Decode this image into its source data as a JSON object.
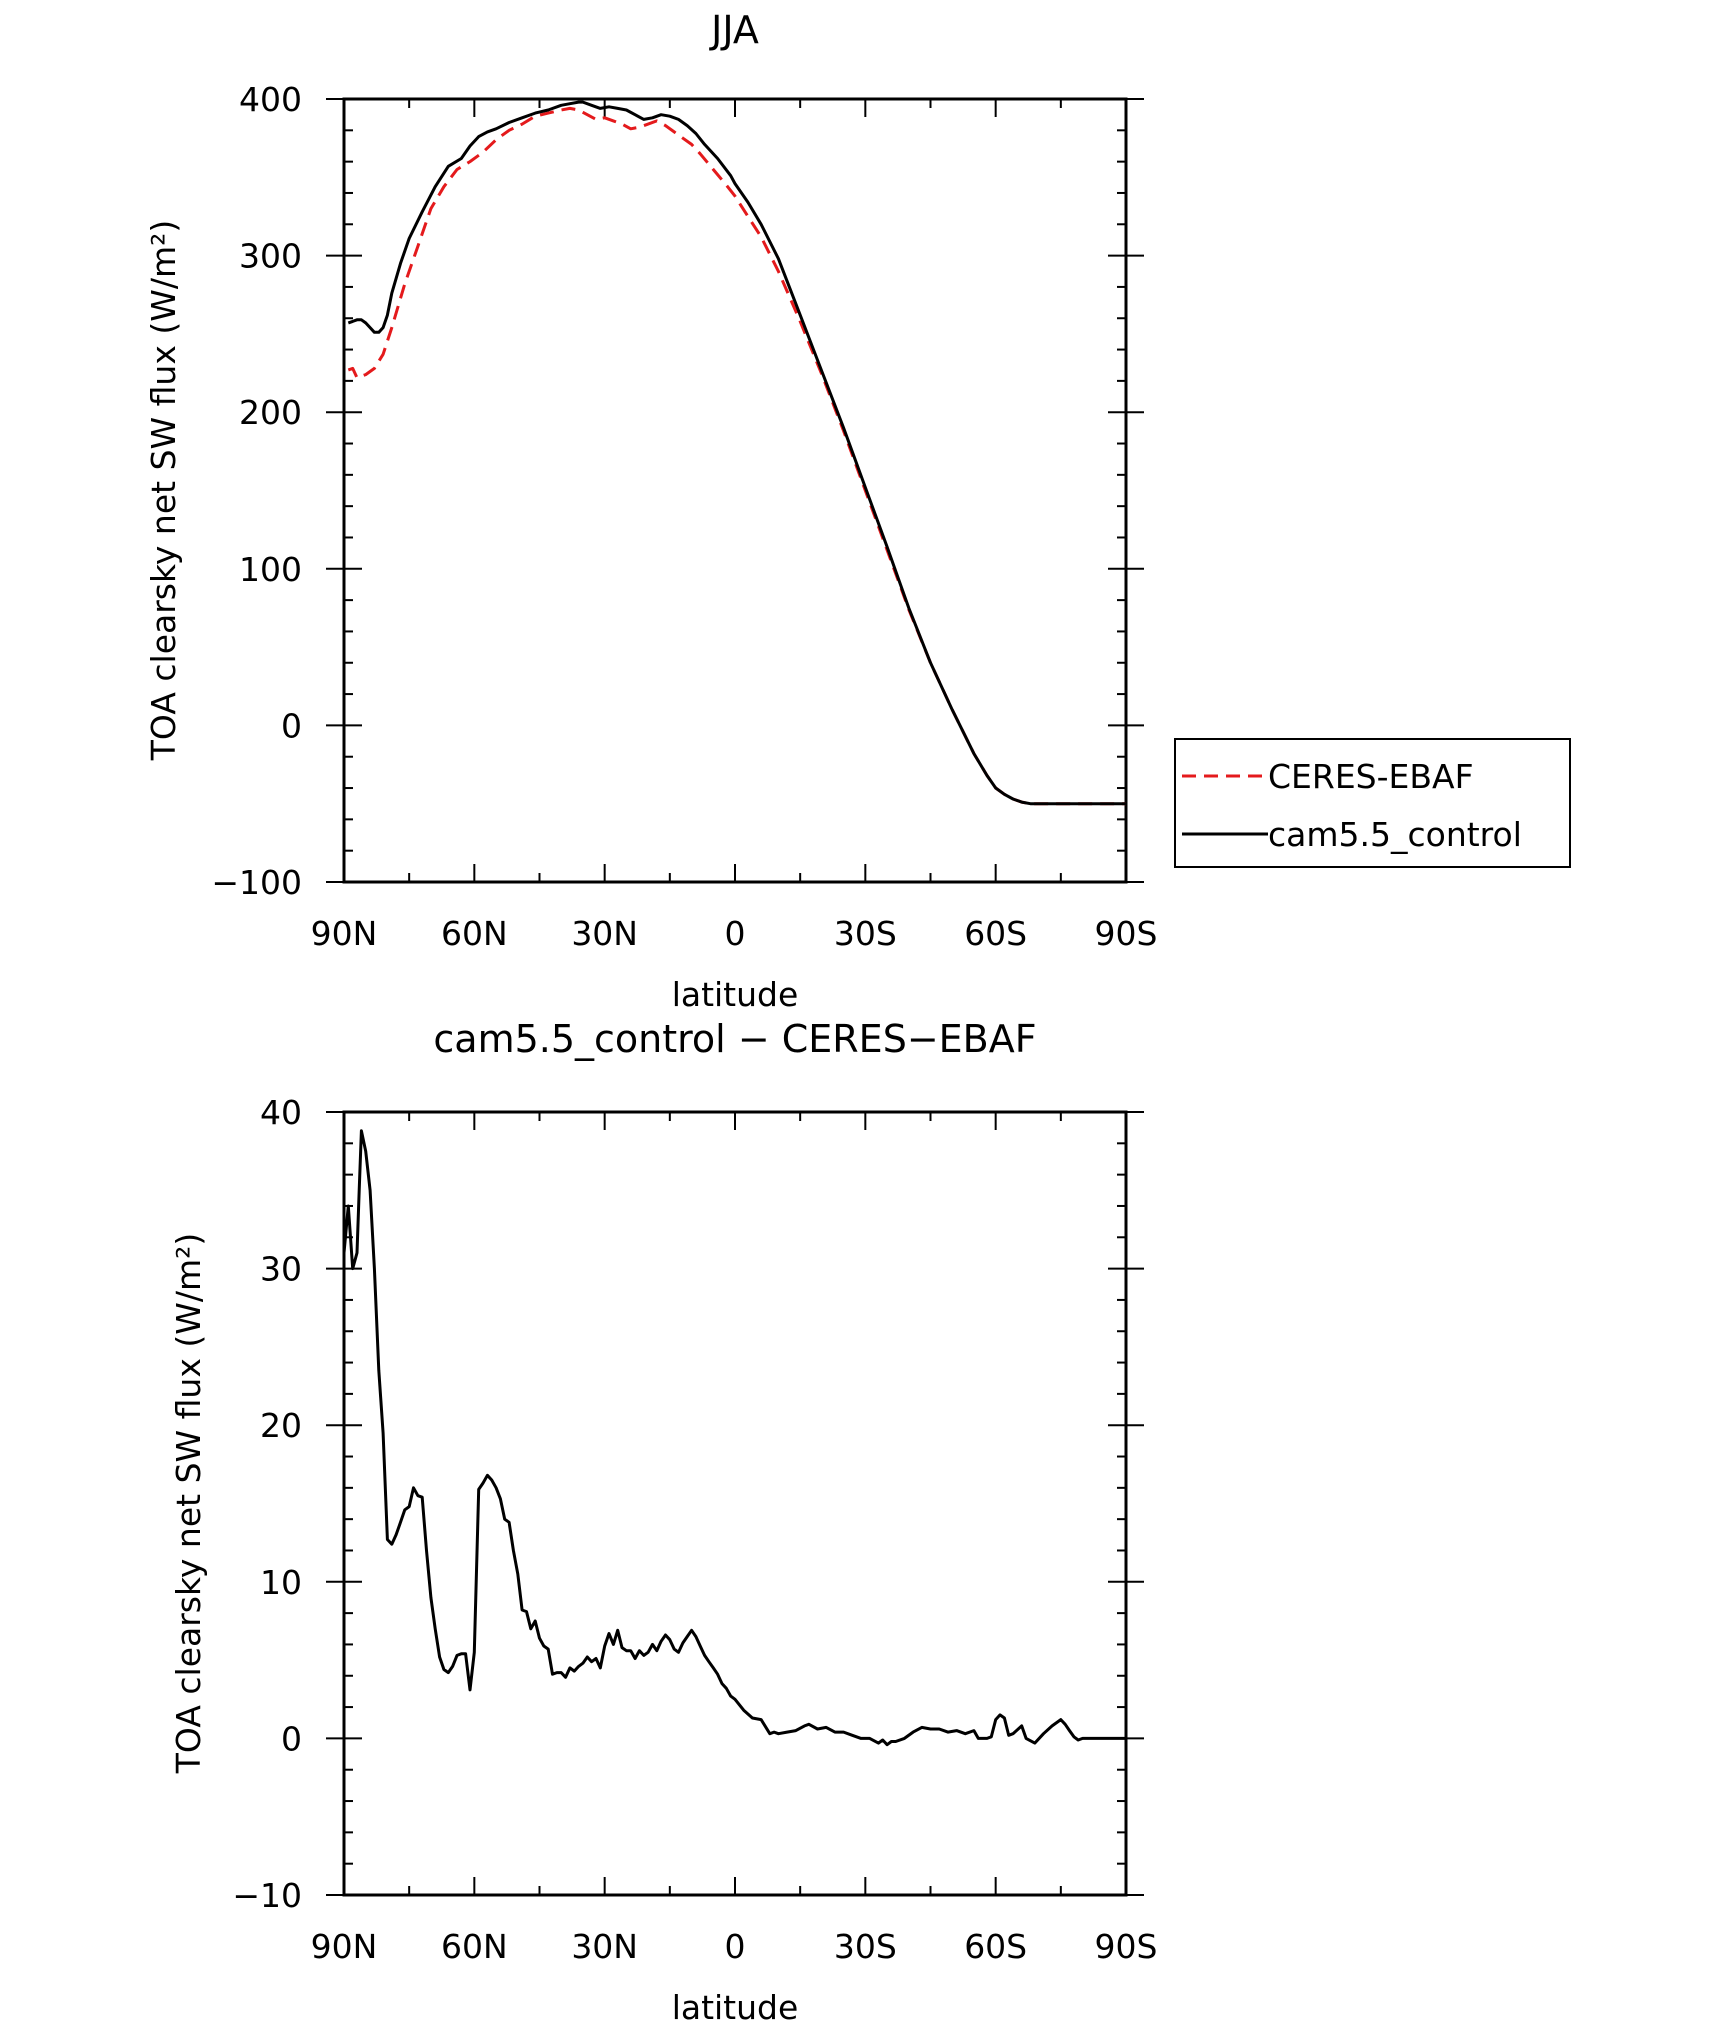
{
  "chart_data": [
    {
      "type": "line",
      "title": "JJA",
      "xlabel": "latitude",
      "ylabel": "TOA clearsky net SW flux (W/m²)",
      "xlim": [
        90,
        -90
      ],
      "ylim": [
        -100,
        400
      ],
      "xticks": [
        90,
        60,
        30,
        0,
        -30,
        -60,
        -90
      ],
      "xtick_labels": [
        "90N",
        "60N",
        "30N",
        "0",
        "30S",
        "60S",
        "90S"
      ],
      "yticks": [
        -100,
        0,
        100,
        200,
        300,
        400
      ],
      "ytick_labels": [
        "−100",
        "0",
        "100",
        "200",
        "300",
        "400"
      ],
      "legend_position": "right",
      "series": [
        {
          "name": "CERES-EBAF",
          "color": "#e41a1c",
          "dash": "dashed",
          "x": [
            89,
            88,
            87,
            86,
            85,
            83,
            81,
            79,
            76,
            73,
            70,
            67,
            64,
            61,
            58,
            55,
            52,
            49,
            46,
            43,
            40,
            38,
            36,
            34,
            32,
            30,
            28,
            26,
            24,
            22,
            20,
            18,
            16,
            14,
            12,
            10,
            8,
            5,
            2,
            0,
            -3,
            -6,
            -10,
            -15,
            -20,
            -25,
            -30,
            -35,
            -40,
            -45,
            -50,
            -55,
            -58,
            -60,
            -62,
            -64,
            -66,
            -68,
            -70,
            -73,
            -76,
            -80,
            -85,
            -90
          ],
          "y": [
            227,
            228,
            222,
            223,
            224,
            228,
            237,
            254,
            282,
            306,
            330,
            344,
            355,
            360,
            366,
            374,
            380,
            384,
            389,
            391,
            393,
            394,
            393,
            390,
            387,
            388,
            386,
            384,
            381,
            382,
            384,
            386,
            383,
            379,
            375,
            371,
            365,
            355,
            345,
            338,
            325,
            312,
            290,
            258,
            224,
            188,
            150,
            112,
            74,
            40,
            10,
            -18,
            -32,
            -40,
            -44,
            -47,
            -49,
            -50,
            -50,
            -50,
            -50,
            -50,
            -50,
            -50
          ]
        },
        {
          "name": "cam5.5_control",
          "color": "#000000",
          "dash": "solid",
          "x": [
            89,
            88,
            87,
            86,
            85,
            84,
            83,
            82,
            81,
            80,
            79,
            77,
            75,
            72,
            69,
            66,
            63,
            61,
            59,
            57,
            55,
            52,
            49,
            46,
            43,
            40,
            38,
            36,
            35,
            33,
            31,
            29,
            27,
            25,
            23,
            21,
            19,
            17,
            15,
            13,
            11,
            9,
            7,
            4,
            1,
            0,
            -3,
            -6,
            -10,
            -15,
            -20,
            -25,
            -30,
            -35,
            -40,
            -45,
            -50,
            -55,
            -58,
            -60,
            -62,
            -64,
            -66,
            -68,
            -70,
            -73,
            -76,
            -80,
            -85,
            -90
          ],
          "y": [
            257,
            258,
            259,
            259,
            257,
            254,
            251,
            251,
            254,
            262,
            276,
            295,
            311,
            328,
            344,
            357,
            362,
            370,
            376,
            379,
            381,
            385,
            388,
            391,
            393,
            396,
            397,
            398,
            398,
            396,
            394,
            395,
            394,
            393,
            390,
            387,
            388,
            390,
            389,
            387,
            383,
            378,
            371,
            362,
            351,
            346,
            334,
            320,
            298,
            262,
            226,
            190,
            152,
            114,
            75,
            40,
            10,
            -18,
            -32,
            -40,
            -44,
            -47,
            -49,
            -50,
            -50,
            -50,
            -50,
            -50,
            -50,
            -50
          ]
        }
      ]
    },
    {
      "type": "line",
      "title": "cam5.5_control − CERES−EBAF",
      "xlabel": "latitude",
      "ylabel": "TOA clearsky net SW flux (W/m²)",
      "xlim": [
        90,
        -90
      ],
      "ylim": [
        -10,
        40
      ],
      "xticks": [
        90,
        60,
        30,
        0,
        -30,
        -60,
        -90
      ],
      "xtick_labels": [
        "90N",
        "60N",
        "30N",
        "0",
        "30S",
        "60S",
        "90S"
      ],
      "yticks": [
        -10,
        0,
        10,
        20,
        30,
        40
      ],
      "ytick_labels": [
        "−10",
        "0",
        "10",
        "20",
        "30",
        "40"
      ],
      "series": [
        {
          "name": "",
          "color": "#000000",
          "dash": "solid",
          "x": [
            90,
            89,
            88,
            87,
            86.5,
            86,
            85,
            84,
            83,
            82,
            81,
            80,
            79,
            78,
            77,
            76,
            75,
            74,
            73,
            72,
            71,
            70,
            69,
            68,
            67,
            66,
            65,
            64,
            63,
            62,
            61,
            60,
            59,
            58,
            57,
            56,
            55,
            54,
            53,
            52,
            51,
            50,
            49,
            48,
            47,
            46,
            45,
            44,
            43,
            42,
            41,
            40,
            39,
            38,
            37,
            36,
            35,
            34,
            33,
            32,
            31,
            30,
            29,
            28,
            27,
            26,
            25,
            24,
            23,
            22,
            21,
            20,
            19,
            18,
            17,
            16,
            15,
            14,
            13,
            12,
            11,
            10,
            9,
            8,
            7,
            6,
            5,
            4,
            3,
            2,
            1,
            0,
            -2,
            -4,
            -6,
            -8,
            -9,
            -10,
            -12,
            -14,
            -16,
            -17,
            -19,
            -21,
            -23,
            -25,
            -27,
            -29,
            -31,
            -33,
            -34,
            -35,
            -36,
            -37,
            -39,
            -41,
            -43,
            -45,
            -47,
            -49,
            -51,
            -53,
            -55,
            -56,
            -58,
            -59,
            -60,
            -61,
            -62,
            -63,
            -64,
            -66,
            -67,
            -69,
            -71,
            -73,
            -75,
            -76,
            -77,
            -78,
            -79,
            -80,
            -82,
            -85,
            -90
          ],
          "y": [
            31,
            34,
            30,
            31,
            35,
            38.8,
            37.5,
            35,
            30,
            23.5,
            19.5,
            12.7,
            12.4,
            13,
            13.8,
            14.6,
            14.8,
            16,
            15.5,
            15.4,
            12,
            9,
            7,
            5.2,
            4.4,
            4.2,
            4.6,
            5.3,
            5.4,
            5.4,
            3.1,
            5.5,
            15.9,
            16.3,
            16.8,
            16.5,
            16,
            15.3,
            14,
            13.8,
            12,
            10.5,
            8.2,
            8.1,
            7,
            7.5,
            6.4,
            5.9,
            5.7,
            4.1,
            4.2,
            4.2,
            3.9,
            4.5,
            4.3,
            4.6,
            4.8,
            5.2,
            4.9,
            5.1,
            4.5,
            5.9,
            6.7,
            6,
            6.9,
            5.8,
            5.6,
            5.6,
            5.1,
            5.6,
            5.3,
            5.5,
            6,
            5.6,
            6.2,
            6.6,
            6.3,
            5.7,
            5.5,
            6.1,
            6.5,
            6.9,
            6.5,
            5.9,
            5.3,
            4.9,
            4.5,
            4.1,
            3.5,
            3.2,
            2.7,
            2.5,
            1.8,
            1.3,
            1.2,
            0.3,
            0.4,
            0.3,
            0.4,
            0.5,
            0.8,
            0.9,
            0.6,
            0.7,
            0.4,
            0.4,
            0.2,
            0,
            0,
            -0.3,
            -0.1,
            -0.4,
            -0.2,
            -0.2,
            0,
            0.4,
            0.7,
            0.6,
            0.6,
            0.4,
            0.5,
            0.3,
            0.5,
            0,
            0,
            0.1,
            1.2,
            1.5,
            1.3,
            0.2,
            0.3,
            0.8,
            0,
            -0.3,
            0.3,
            0.8,
            1.2,
            0.9,
            0.5,
            0.1,
            -0.1,
            0,
            0,
            0,
            0
          ]
        }
      ]
    }
  ],
  "legend": {
    "items": [
      {
        "label": "CERES-EBAF",
        "color": "#e41a1c",
        "dash": "dashed"
      },
      {
        "label": "cam5.5_control",
        "color": "#000000",
        "dash": "solid"
      }
    ]
  }
}
